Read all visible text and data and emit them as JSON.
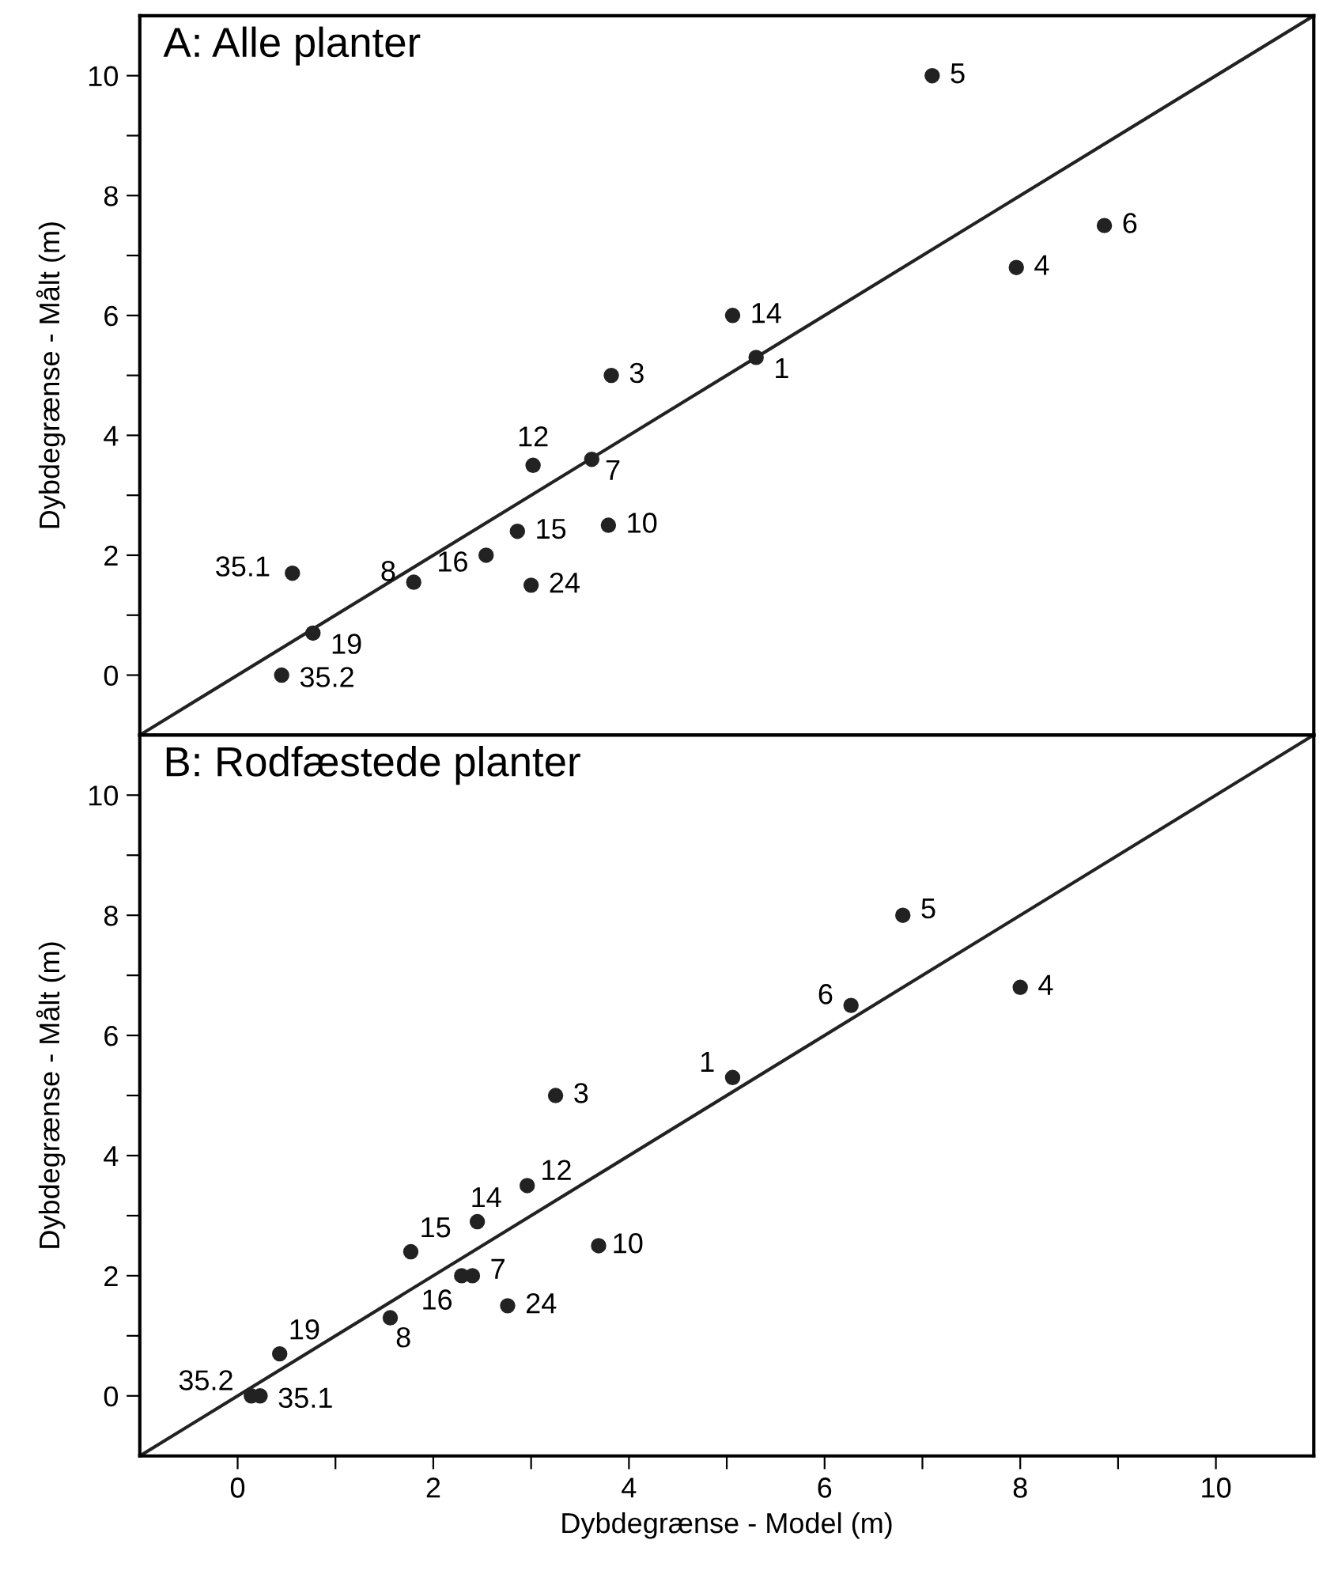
{
  "chart_data": [
    {
      "type": "scatter",
      "title": "A: Alle planter",
      "ylabel": "Dybdegrænse - Målt (m)",
      "xlim": [
        -1,
        11
      ],
      "ylim": [
        -1,
        11
      ],
      "yticks": [
        0,
        {
          "value": 1,
          "label": null
        },
        2,
        {
          "value": 3,
          "label": null
        },
        4,
        {
          "value": 5,
          "label": null
        },
        6,
        {
          "value": 7,
          "label": null
        },
        8,
        {
          "value": 9,
          "label": null
        },
        10
      ],
      "tick_labels": "y",
      "grid": false,
      "legend": false,
      "marker": "circle",
      "series": [
        {
          "color": "#222222",
          "x": [
            7.1,
            8.86,
            7.96,
            5.06,
            5.3,
            3.82,
            3.02,
            3.62,
            2.86,
            3.79,
            2.54,
            3.0,
            1.8,
            0.56,
            0.77,
            0.45
          ],
          "values": [
            10.0,
            7.5,
            6.8,
            6.0,
            5.3,
            5.0,
            3.5,
            3.6,
            2.4,
            2.5,
            2.0,
            1.5,
            1.55,
            1.7,
            0.7,
            0.0
          ]
        },
        {
          "type": "line",
          "color": "#222222",
          "line_style": "solid",
          "marker": "none",
          "x": [
            -1,
            11
          ],
          "values": [
            -1,
            11
          ]
        }
      ],
      "annotations": [
        {
          "text": "5",
          "x": 7.1,
          "y": 10.0
        },
        {
          "text": "6",
          "x": 8.86,
          "y": 7.5
        },
        {
          "text": "4",
          "x": 7.96,
          "y": 6.8
        },
        {
          "text": "14",
          "x": 5.06,
          "y": 6.0
        },
        {
          "text": "1",
          "x": 5.3,
          "y": 5.3
        },
        {
          "text": "3",
          "x": 3.82,
          "y": 5.0
        },
        {
          "text": "12",
          "x": 3.02,
          "y": 3.5
        },
        {
          "text": "7",
          "x": 3.62,
          "y": 3.6
        },
        {
          "text": "15",
          "x": 2.86,
          "y": 2.4
        },
        {
          "text": "10",
          "x": 3.79,
          "y": 2.5
        },
        {
          "text": "16",
          "x": 2.54,
          "y": 2.0
        },
        {
          "text": "24",
          "x": 3.0,
          "y": 1.5
        },
        {
          "text": "8",
          "x": 1.8,
          "y": 1.55
        },
        {
          "text": "35.1",
          "x": 0.56,
          "y": 1.7
        },
        {
          "text": "19",
          "x": 0.77,
          "y": 0.7
        },
        {
          "text": "35.2",
          "x": 0.45,
          "y": 0.0
        }
      ]
    },
    {
      "type": "scatter",
      "title": "B: Rodfæstede planter",
      "ylabel": "Dybdegrænse - Målt (m)",
      "xlabel": "Dybdegrænse - Model (m)",
      "xlim": [
        -1,
        11
      ],
      "ylim": [
        -1,
        11
      ],
      "xticks": [
        0,
        {
          "value": 1,
          "label": null
        },
        2,
        {
          "value": 3,
          "label": null
        },
        4,
        {
          "value": 5,
          "label": null
        },
        6,
        {
          "value": 7,
          "label": null
        },
        8,
        {
          "value": 9,
          "label": null
        },
        10
      ],
      "yticks": [
        0,
        {
          "value": 1,
          "label": null
        },
        2,
        {
          "value": 3,
          "label": null
        },
        4,
        {
          "value": 5,
          "label": null
        },
        6,
        {
          "value": 7,
          "label": null
        },
        8,
        {
          "value": 9,
          "label": null
        },
        10
      ],
      "grid": false,
      "legend": false,
      "marker": "circle",
      "series": [
        {
          "color": "#222222",
          "x": [
            6.8,
            6.27,
            8.0,
            5.06,
            3.25,
            2.96,
            2.45,
            1.77,
            3.69,
            2.4,
            2.29,
            2.76,
            1.56,
            0.43,
            0.14,
            0.23
          ],
          "values": [
            8.0,
            6.5,
            6.8,
            5.3,
            5.0,
            3.5,
            2.9,
            2.4,
            2.5,
            2.0,
            2.0,
            1.5,
            1.3,
            0.7,
            0.0,
            0.0
          ]
        },
        {
          "type": "line",
          "color": "#222222",
          "line_style": "solid",
          "marker": "none",
          "x": [
            -1,
            11
          ],
          "values": [
            -1,
            11
          ]
        }
      ],
      "annotations": [
        {
          "text": "5",
          "x": 6.8,
          "y": 8.0
        },
        {
          "text": "6",
          "x": 6.27,
          "y": 6.5
        },
        {
          "text": "4",
          "x": 8.0,
          "y": 6.8
        },
        {
          "text": "1",
          "x": 5.06,
          "y": 5.3
        },
        {
          "text": "3",
          "x": 3.25,
          "y": 5.0
        },
        {
          "text": "12",
          "x": 2.96,
          "y": 3.5
        },
        {
          "text": "14",
          "x": 2.45,
          "y": 2.9
        },
        {
          "text": "15",
          "x": 1.77,
          "y": 2.4
        },
        {
          "text": "10",
          "x": 3.69,
          "y": 2.5
        },
        {
          "text": "7",
          "x": 2.4,
          "y": 2.0
        },
        {
          "text": "16",
          "x": 2.29,
          "y": 2.0
        },
        {
          "text": "24",
          "x": 2.76,
          "y": 1.5
        },
        {
          "text": "8",
          "x": 1.56,
          "y": 1.3
        },
        {
          "text": "19",
          "x": 0.43,
          "y": 0.7
        },
        {
          "text": "35.2",
          "x": 0.14,
          "y": 0.0
        },
        {
          "text": "35.1",
          "x": 0.23,
          "y": 0.0
        }
      ]
    }
  ]
}
